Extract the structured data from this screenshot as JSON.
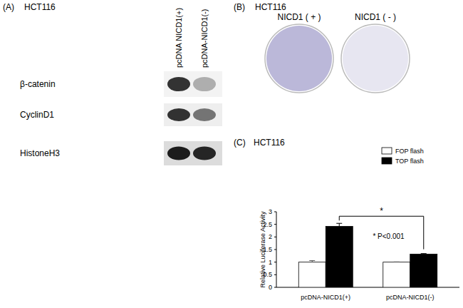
{
  "panel_a": {
    "label": "(A)",
    "title": "HCT116",
    "lanes": [
      "pcDNA NICD1(+)",
      "pcDNA-NICD1(-)"
    ],
    "rows": [
      {
        "label": "β-catenin",
        "intensity": [
          0.85,
          0.3
        ]
      },
      {
        "label": "CyclinD1",
        "intensity": [
          0.85,
          0.55
        ]
      },
      {
        "label": "HistoneH3",
        "intensity": [
          0.95,
          0.9
        ]
      }
    ]
  },
  "panel_b": {
    "label": "(B)",
    "title": "HCT116",
    "plates": [
      {
        "label": "NICD1 ( + )",
        "density": 0.85
      },
      {
        "label": "NICD1 ( - )",
        "density": 0.3
      }
    ]
  },
  "panel_c_label": "(C)",
  "chart_data": {
    "type": "bar",
    "title": "HCT116",
    "y_label": "Relative Luciferase Activity",
    "categories": [
      "pcDNA-NICD1(+)",
      "pcDNA-NICD1(-)"
    ],
    "series": [
      {
        "name": "FOP flash",
        "color": "#ffffff",
        "values": [
          1.0,
          1.0
        ],
        "errors": [
          0.06,
          0.01
        ]
      },
      {
        "name": "TOP flash",
        "color": "#000000",
        "values": [
          2.42,
          1.32
        ],
        "errors": [
          0.12,
          0.02
        ]
      }
    ],
    "ylim": [
      0,
      3
    ],
    "yticks": [
      0,
      0.5,
      1,
      1.5,
      2,
      2.5,
      3
    ],
    "legend": "upper right",
    "annotations": [
      "*",
      "* P<0.001"
    ]
  }
}
